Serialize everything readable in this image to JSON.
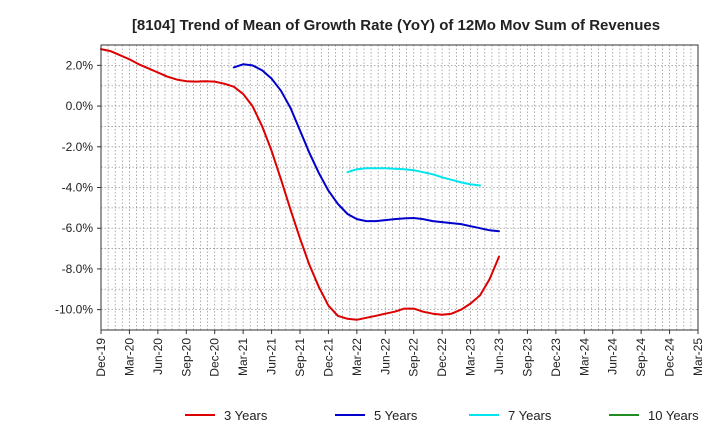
{
  "chart_data": {
    "type": "line",
    "title": "[8104]  Trend of Mean of Growth Rate (YoY) of 12Mo Mov Sum of Revenues",
    "xlabel": "",
    "ylabel": "",
    "x_tick_labels": [
      "Dec-19",
      "Mar-20",
      "Jun-20",
      "Sep-20",
      "Dec-20",
      "Mar-21",
      "Jun-21",
      "Sep-21",
      "Dec-21",
      "Mar-22",
      "Jun-22",
      "Sep-22",
      "Dec-22",
      "Mar-23",
      "Jun-23",
      "Sep-23",
      "Dec-23",
      "Mar-24",
      "Jun-24",
      "Sep-24",
      "Dec-24",
      "Mar-25"
    ],
    "y_tick_labels": [
      "2.0%",
      "0.0%",
      "-2.0%",
      "-4.0%",
      "-6.0%",
      "-8.0%",
      "-10.0%"
    ],
    "y_ticks": [
      2,
      0,
      -2,
      -4,
      -6,
      -8,
      -10
    ],
    "ylim": [
      -11,
      3
    ],
    "x_range": [
      0,
      21
    ],
    "grid": true,
    "legend_position": "bottom",
    "series": [
      {
        "name": "3 Years",
        "color": "#dd0000",
        "points": [
          [
            0,
            2.8
          ],
          [
            0.33,
            2.7
          ],
          [
            0.67,
            2.5
          ],
          [
            1,
            2.3
          ],
          [
            1.33,
            2.05
          ],
          [
            1.67,
            1.85
          ],
          [
            2,
            1.65
          ],
          [
            2.33,
            1.45
          ],
          [
            2.67,
            1.3
          ],
          [
            3,
            1.22
          ],
          [
            3.33,
            1.2
          ],
          [
            3.67,
            1.22
          ],
          [
            4,
            1.2
          ],
          [
            4.33,
            1.1
          ],
          [
            4.67,
            0.95
          ],
          [
            5,
            0.6
          ],
          [
            5.33,
            0
          ],
          [
            5.67,
            -1.0
          ],
          [
            6,
            -2.2
          ],
          [
            6.33,
            -3.6
          ],
          [
            6.67,
            -5.1
          ],
          [
            7,
            -6.5
          ],
          [
            7.33,
            -7.8
          ],
          [
            7.67,
            -8.9
          ],
          [
            8,
            -9.8
          ],
          [
            8.33,
            -10.3
          ],
          [
            8.67,
            -10.45
          ],
          [
            9,
            -10.5
          ],
          [
            9.33,
            -10.4
          ],
          [
            9.67,
            -10.3
          ],
          [
            10,
            -10.2
          ],
          [
            10.33,
            -10.1
          ],
          [
            10.67,
            -9.95
          ],
          [
            11,
            -9.95
          ],
          [
            11.33,
            -10.1
          ],
          [
            11.67,
            -10.2
          ],
          [
            12,
            -10.25
          ],
          [
            12.33,
            -10.2
          ],
          [
            12.67,
            -10.0
          ],
          [
            13,
            -9.7
          ],
          [
            13.33,
            -9.3
          ],
          [
            13.67,
            -8.5
          ],
          [
            14,
            -7.4
          ]
        ]
      },
      {
        "name": "5 Years",
        "color": "#0000cc",
        "points": [
          [
            4.67,
            1.9
          ],
          [
            5,
            2.05
          ],
          [
            5.33,
            2.0
          ],
          [
            5.67,
            1.75
          ],
          [
            6,
            1.35
          ],
          [
            6.33,
            0.75
          ],
          [
            6.67,
            -0.1
          ],
          [
            7,
            -1.2
          ],
          [
            7.33,
            -2.3
          ],
          [
            7.67,
            -3.3
          ],
          [
            8,
            -4.15
          ],
          [
            8.33,
            -4.8
          ],
          [
            8.67,
            -5.3
          ],
          [
            9,
            -5.55
          ],
          [
            9.33,
            -5.65
          ],
          [
            9.67,
            -5.65
          ],
          [
            10,
            -5.6
          ],
          [
            10.33,
            -5.55
          ],
          [
            10.67,
            -5.52
          ],
          [
            11,
            -5.5
          ],
          [
            11.33,
            -5.55
          ],
          [
            11.67,
            -5.65
          ],
          [
            12,
            -5.7
          ],
          [
            12.33,
            -5.75
          ],
          [
            12.67,
            -5.8
          ],
          [
            13,
            -5.9
          ],
          [
            13.33,
            -6.0
          ],
          [
            13.67,
            -6.1
          ],
          [
            14,
            -6.15
          ]
        ]
      },
      {
        "name": "7 Years",
        "color": "#00e5ee",
        "points": [
          [
            8.67,
            -3.25
          ],
          [
            9,
            -3.1
          ],
          [
            9.33,
            -3.05
          ],
          [
            9.67,
            -3.05
          ],
          [
            10,
            -3.05
          ],
          [
            10.33,
            -3.08
          ],
          [
            10.67,
            -3.1
          ],
          [
            11,
            -3.15
          ],
          [
            11.33,
            -3.25
          ],
          [
            11.67,
            -3.35
          ],
          [
            12,
            -3.5
          ],
          [
            12.33,
            -3.62
          ],
          [
            12.67,
            -3.75
          ],
          [
            13,
            -3.85
          ],
          [
            13.33,
            -3.9
          ]
        ]
      },
      {
        "name": "10 Years",
        "color": "#228b22",
        "points": []
      }
    ]
  }
}
